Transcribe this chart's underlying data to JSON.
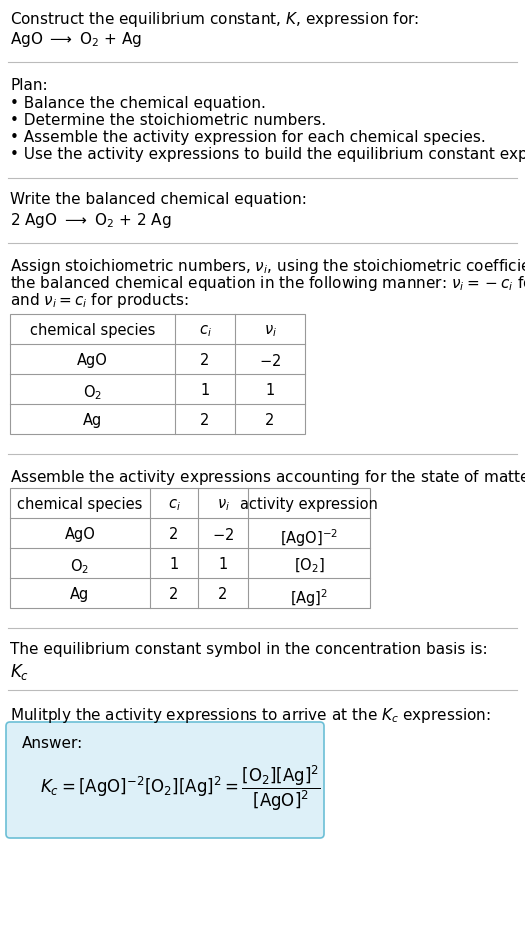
{
  "title_line1": "Construct the equilibrium constant, $K$, expression for:",
  "title_line2": "AgO $\\longrightarrow$ O$_2$ + Ag",
  "plan_header": "Plan:",
  "plan_items": [
    "• Balance the chemical equation.",
    "• Determine the stoichiometric numbers.",
    "• Assemble the activity expression for each chemical species.",
    "• Use the activity expressions to build the equilibrium constant expression."
  ],
  "balanced_header": "Write the balanced chemical equation:",
  "balanced_eq": "2 AgO $\\longrightarrow$ O$_2$ + 2 Ag",
  "stoich_intro_lines": [
    "Assign stoichiometric numbers, $\\nu_i$, using the stoichiometric coefficients, $c_i$, from",
    "the balanced chemical equation in the following manner: $\\nu_i = -c_i$ for reactants",
    "and $\\nu_i = c_i$ for products:"
  ],
  "table1_headers": [
    "chemical species",
    "$c_i$",
    "$\\nu_i$"
  ],
  "table1_rows": [
    [
      "AgO",
      "2",
      "$-2$"
    ],
    [
      "O$_2$",
      "1",
      "1"
    ],
    [
      "Ag",
      "2",
      "2"
    ]
  ],
  "activity_intro": "Assemble the activity expressions accounting for the state of matter and $\\nu_i$:",
  "table2_headers": [
    "chemical species",
    "$c_i$",
    "$\\nu_i$",
    "activity expression"
  ],
  "table2_rows": [
    [
      "AgO",
      "2",
      "$-2$",
      "$[\\mathrm{AgO}]^{-2}$"
    ],
    [
      "O$_2$",
      "1",
      "1",
      "$[\\mathrm{O_2}]$"
    ],
    [
      "Ag",
      "2",
      "2",
      "$[\\mathrm{Ag}]^2$"
    ]
  ],
  "kc_intro": "The equilibrium constant symbol in the concentration basis is:",
  "kc_symbol": "$K_c$",
  "multiply_intro": "Mulitply the activity expressions to arrive at the $K_c$ expression:",
  "answer_label": "Answer:",
  "answer_box_color": "#ddf0f8",
  "answer_box_border": "#6bbfd6",
  "bg_color": "#ffffff",
  "text_color": "#000000",
  "table_border_color": "#999999",
  "font_size": 11,
  "small_font_size": 10.5
}
